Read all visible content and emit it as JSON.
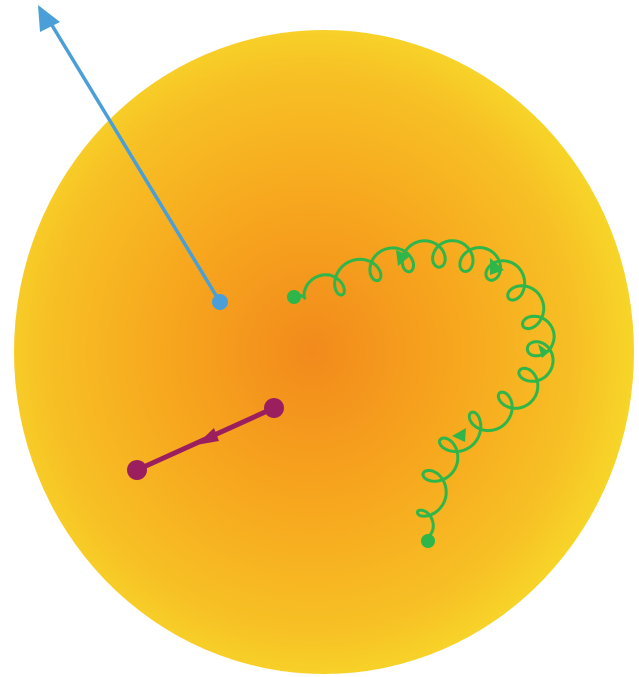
{
  "colors": {
    "background": "#ffffff",
    "sphere_center": "#f28a1c",
    "sphere_mid": "#f7a81e",
    "sphere_edge": "#f7dc2a",
    "blue_arrow": "#4a9fd8",
    "green_spiral": "#2fb64a",
    "purple_segment": "#9b1f5e"
  },
  "elements": {
    "sphere": "radial-gradient-sphere",
    "blue_arrow": "outward-arrow",
    "green_path": "helical-path-with-arrowheads",
    "purple_path": "short-segment-with-arrowhead"
  }
}
